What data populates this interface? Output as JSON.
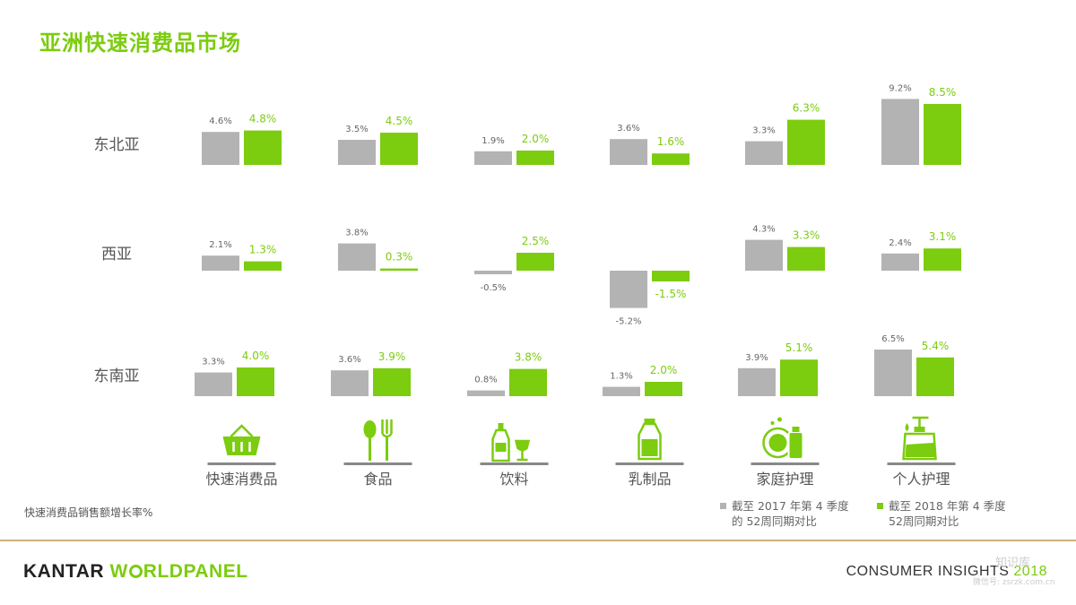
{
  "title": "亚洲快速消费品市场",
  "footnote": "快速消费品销售额增长率%",
  "legend": {
    "gray_line1": "截至 2017 年第 4 季度",
    "gray_line2": "的 52周同期对比",
    "green_line1": "截至 2018 年第 4 季度",
    "green_line2": "52周同期对比"
  },
  "brand": {
    "kantar": "KANTAR",
    "wo_prefix": "W",
    "wo_suffix": "RLDPANEL"
  },
  "insights": {
    "text": "CONSUMER INSIGHTS",
    "year": "2018"
  },
  "watermark": {
    "line1": "知识库",
    "line2": "微信号: zsrzk.com.cn"
  },
  "colors": {
    "gray": "#b3b3b3",
    "green": "#7ccc0f",
    "text": "#555555"
  },
  "chart_data": {
    "type": "bar",
    "title": "亚洲快速消费品市场",
    "categories": [
      "快速消费品",
      "食品",
      "饮料",
      "乳制品",
      "家庭护理",
      "个人护理"
    ],
    "category_icons": [
      "basket-icon",
      "fork-spoon-icon",
      "bottle-glass-icon",
      "milk-bottle-icon",
      "dish-soap-icon",
      "pump-bottle-icon"
    ],
    "regions": [
      {
        "name": "东北亚",
        "series": [
          {
            "name": "截至 2017 年第 4 季度的 52周同期对比",
            "values": [
              4.6,
              3.5,
              1.9,
              3.6,
              3.3,
              9.2
            ]
          },
          {
            "name": "截至 2018 年第 4 季度52周同期对比",
            "values": [
              4.8,
              4.5,
              2.0,
              1.6,
              6.3,
              8.5
            ]
          }
        ]
      },
      {
        "name": "西亚",
        "series": [
          {
            "name": "截至 2017 年第 4 季度的 52周同期对比",
            "values": [
              2.1,
              3.8,
              -0.5,
              -5.2,
              4.3,
              2.4
            ]
          },
          {
            "name": "截至 2018 年第 4 季度52周同期对比",
            "values": [
              1.3,
              0.3,
              2.5,
              -1.5,
              3.3,
              3.1
            ]
          }
        ]
      },
      {
        "name": "东南亚",
        "series": [
          {
            "name": "截至 2017 年第 4 季度的 52周同期对比",
            "values": [
              3.3,
              3.6,
              0.8,
              1.3,
              3.9,
              6.5
            ]
          },
          {
            "name": "截至 2018 年第 4 季度52周同期对比",
            "values": [
              4.0,
              3.9,
              3.8,
              2.0,
              5.1,
              5.4
            ]
          }
        ]
      }
    ],
    "value_suffix": "%",
    "ylabel": "快速消费品销售额增长率%"
  }
}
